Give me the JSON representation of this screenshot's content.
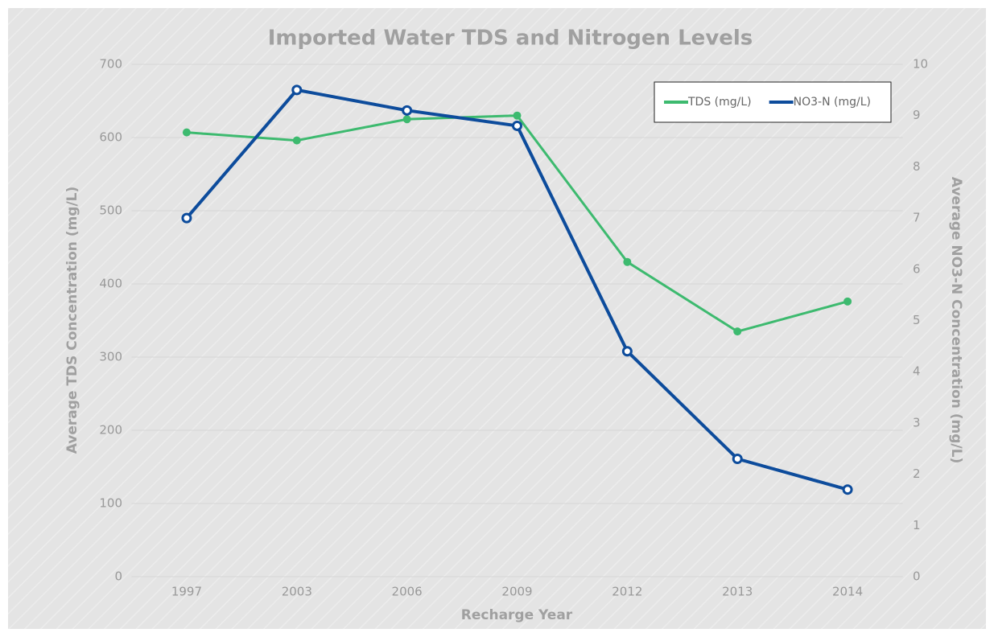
{
  "chart_data": {
    "type": "line",
    "title": "Imported Water TDS and Nitrogen Levels",
    "x_label": "Recharge Year",
    "y_label": "Average TDS Concentration (mg/L)",
    "y2_label": "Average NO3-N Concentration (mg/L)",
    "categories": [
      "1997",
      "2003",
      "2006",
      "2009",
      "2012",
      "2013",
      "2014"
    ],
    "series": [
      {
        "name": "TDS (mg/L)",
        "color": "#3dba6f",
        "values": [
          607,
          596,
          625,
          630,
          430,
          335,
          376
        ]
      },
      {
        "name": "NO3-N (mg/L)",
        "color": "#0d4c9c",
        "axis": "y2",
        "values": [
          7.0,
          9.5,
          9.1,
          8.8,
          4.4,
          2.3,
          1.7
        ]
      }
    ],
    "ylim": [
      0,
      700
    ],
    "yticks": [
      0,
      100,
      200,
      300,
      400,
      500,
      600,
      700
    ],
    "y2lim": [
      0,
      10
    ],
    "y2ticks": [
      0,
      1,
      2,
      3,
      4,
      5,
      6,
      7,
      8,
      9,
      10
    ],
    "grid": true,
    "legend": "upper right"
  }
}
